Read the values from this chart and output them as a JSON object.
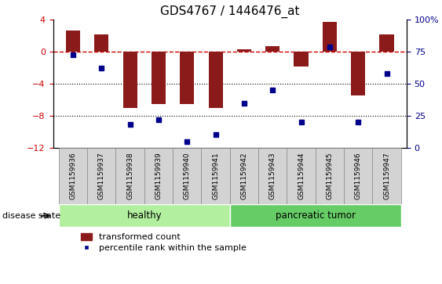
{
  "title": "GDS4767 / 1446476_at",
  "categories": [
    "GSM1159936",
    "GSM1159937",
    "GSM1159938",
    "GSM1159939",
    "GSM1159940",
    "GSM1159941",
    "GSM1159942",
    "GSM1159943",
    "GSM1159944",
    "GSM1159945",
    "GSM1159946",
    "GSM1159947"
  ],
  "bar_values": [
    2.7,
    2.2,
    -7.0,
    -6.5,
    -6.5,
    -7.0,
    0.3,
    0.7,
    -1.8,
    3.7,
    -5.5,
    2.2
  ],
  "percentile_values": [
    73,
    62,
    18,
    22,
    5,
    10,
    35,
    45,
    20,
    79,
    20,
    58
  ],
  "bar_color": "#8B1A1A",
  "dot_color": "#00008B",
  "zero_line_color": "#cc0000",
  "grid_color": "#000000",
  "ylim_left": [
    -12,
    4
  ],
  "ylim_right": [
    0,
    100
  ],
  "yticks_left": [
    -12,
    -8,
    -4,
    0,
    4
  ],
  "yticks_right": [
    0,
    25,
    50,
    75,
    100
  ],
  "label_box_color": "#d3d3d3",
  "label_box_edge": "#888888",
  "healthy_color": "#b2f0a0",
  "tumor_color": "#66CC66",
  "healthy_label": "healthy",
  "tumor_label": "pancreatic tumor",
  "healthy_count": 6,
  "tumor_count": 6,
  "disease_state_label": "disease state",
  "legend_bar_label": "transformed count",
  "legend_dot_label": "percentile rank within the sample",
  "figsize": [
    5.63,
    3.63
  ],
  "dpi": 100
}
